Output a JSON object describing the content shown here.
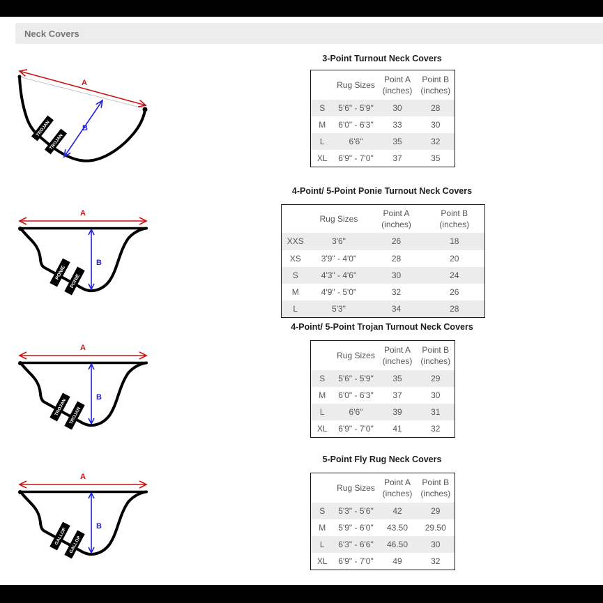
{
  "page": {
    "header_label": "Neck Covers"
  },
  "colors": {
    "arrow_a_red": "#cc1111",
    "arrow_b_blue": "#2222dd",
    "table_stripe": "#ececec",
    "banner_black": "#000000",
    "header_bar_bg": "#ededed"
  },
  "sections": [
    {
      "title": "3-Point Turnout Neck Covers",
      "diagram": {
        "arrow_a_label": "A",
        "arrow_b_label": "B",
        "strap_label": "TROJAN"
      },
      "table": {
        "headers": [
          "",
          "Rug Sizes",
          "Point A\n(inches)",
          "Point B\n(inches)"
        ],
        "rows": [
          [
            "S",
            "5'6\" - 5'9\"",
            "30",
            "28"
          ],
          [
            "M",
            "6'0\" - 6'3\"",
            "33",
            "30"
          ],
          [
            "L",
            "6'6\"",
            "35",
            "32"
          ],
          [
            "XL",
            "6'9\" - 7'0\"",
            "37",
            "35"
          ]
        ]
      }
    },
    {
      "title": "4-Point/ 5-Point Ponie Turnout Neck Covers",
      "diagram": {
        "arrow_a_label": "A",
        "arrow_b_label": "B",
        "strap_label": "PONIE"
      },
      "table": {
        "headers": [
          "",
          "Rug Sizes",
          "Point A (inches)",
          "Point B (inches)"
        ],
        "rows": [
          [
            "XXS",
            "3'6\"",
            "26",
            "18"
          ],
          [
            "XS",
            "3'9\" - 4'0\"",
            "28",
            "20"
          ],
          [
            "S",
            "4'3\" - 4'6\"",
            "30",
            "24"
          ],
          [
            "M",
            "4'9\" - 5'0\"",
            "32",
            "26"
          ],
          [
            "L",
            "5'3\"",
            "34",
            "28"
          ]
        ]
      }
    },
    {
      "title": "4-Point/ 5-Point Trojan Turnout Neck Covers",
      "diagram": {
        "arrow_a_label": "A",
        "arrow_b_label": "B",
        "strap_label": "TROJAN"
      },
      "table": {
        "headers": [
          "",
          "Rug Sizes",
          "Point A\n(inches)",
          "Point B\n(inches)"
        ],
        "rows": [
          [
            "S",
            "5'6\" - 5'9\"",
            "35",
            "29"
          ],
          [
            "M",
            "6'0\" - 6'3\"",
            "37",
            "30"
          ],
          [
            "L",
            "6'6\"",
            "39",
            "31"
          ],
          [
            "XL",
            "6'9\" - 7'0\"",
            "41",
            "32"
          ]
        ]
      }
    },
    {
      "title": "5-Point Fly Rug Neck Covers",
      "diagram": {
        "arrow_a_label": "A",
        "arrow_b_label": "B",
        "strap_label": "GALLOP"
      },
      "table": {
        "headers": [
          "",
          "Rug Sizes",
          "Point A\n(inches)",
          "Point B\n(inches)"
        ],
        "rows": [
          [
            "S",
            "5'3\" - 5'6\"",
            "42",
            "29"
          ],
          [
            "M",
            "5'9\" - 6'0\"",
            "43.50",
            "29.50"
          ],
          [
            "L",
            "6'3\" - 6'6\"",
            "46.50",
            "30"
          ],
          [
            "XL",
            "6'9\" - 7'0\"",
            "49",
            "32"
          ]
        ]
      }
    }
  ]
}
